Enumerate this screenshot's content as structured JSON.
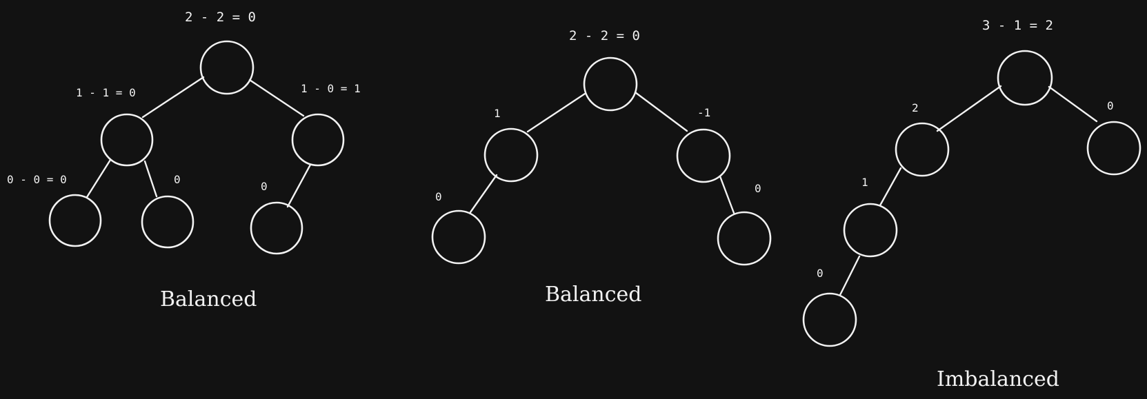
{
  "colors": {
    "background": "#121212",
    "stroke": "#f2f2f2"
  },
  "trees": [
    {
      "caption": "Balanced",
      "root_label": "2 - 2 = 0",
      "left_child_label": "1 - 1 = 0",
      "right_child_label": "1 - 0 = 1",
      "leaf_labels": [
        "0 - 0 = 0",
        "0",
        "0"
      ]
    },
    {
      "caption": "Balanced",
      "root_label": "2 - 2 = 0",
      "left_child_label": "1",
      "right_child_label": "-1",
      "leaf_labels": [
        "0",
        "0"
      ]
    },
    {
      "caption": "Imbalanced",
      "root_label": "3 - 1 = 2",
      "left_child_label": "2",
      "right_child_label": "0",
      "grandchild_label": "1",
      "leaf_labels": [
        "0"
      ]
    }
  ]
}
